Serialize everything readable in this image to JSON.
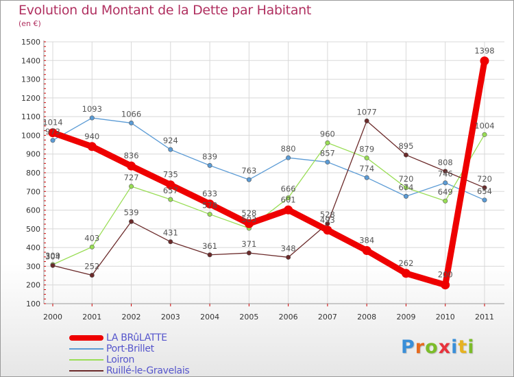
{
  "title": "Evolution du Montant de la Dette par Habitant",
  "subtitle": "(en €)",
  "brand": {
    "text": "Proxiti",
    "letter_colors": [
      "#3a8fd8",
      "#e66a1e",
      "#7cbc2a",
      "#e8323c",
      "#3a8fd8",
      "#e6b222",
      "#7cbc2a"
    ]
  },
  "colors": {
    "axis_text": "#333333",
    "grid": "#d8d8d8",
    "tick_red": "#cc0000"
  },
  "chart_data": {
    "type": "line",
    "title": "Evolution du Montant de la Dette par Habitant",
    "ylabel": "(en €)",
    "xlabel": "",
    "ylim": [
      100,
      1500
    ],
    "ytick_step": 100,
    "y_ticks": [
      "100",
      "200",
      "300",
      "400",
      "500",
      "600",
      "700",
      "800",
      "900",
      "1000",
      "1100",
      "1200",
      "1300",
      "1400",
      "1500"
    ],
    "grid": true,
    "legend_position": "bottom-left",
    "x": [
      "2000",
      "2001",
      "2002",
      "2003",
      "2004",
      "2005",
      "2006",
      "2007",
      "2008",
      "2009",
      "2010",
      "2011"
    ],
    "series": [
      {
        "name": "LA BRûLATTE",
        "color": "#ee0000",
        "emphasis": true,
        "values": [
          1014,
          940,
          836,
          735,
          633,
          528,
          601,
          493,
          384,
          262,
          200,
          1398
        ],
        "labels": [
          "1014",
          "940",
          "836",
          "735",
          "633",
          "528",
          "601",
          "493",
          "384",
          "262",
          "200",
          "1398"
        ]
      },
      {
        "name": "Port-Brillet",
        "color": "#5b9bd5",
        "emphasis": false,
        "values": [
          973,
          1093,
          1066,
          924,
          839,
          763,
          880,
          857,
          774,
          674,
          746,
          654
        ],
        "labels": [
          "973",
          "1093",
          "1066",
          "924",
          "839",
          "763",
          "880",
          "857",
          "774",
          "674",
          "746",
          "654"
        ]
      },
      {
        "name": "Loiron",
        "color": "#99dd55",
        "emphasis": false,
        "values": [
          309,
          403,
          727,
          657,
          578,
          503,
          666,
          960,
          879,
          720,
          649,
          1004
        ],
        "labels": [
          "309",
          "403",
          "727",
          "657",
          "578",
          "503",
          "666",
          "960",
          "879",
          "720",
          "649",
          "1004"
        ]
      },
      {
        "name": "Ruillé-le-Gravelais",
        "color": "#6b2a2a",
        "emphasis": false,
        "values": [
          304,
          252,
          539,
          431,
          361,
          371,
          348,
          528,
          1077,
          895,
          808,
          720
        ],
        "labels": [
          "304",
          "252",
          "539",
          "431",
          "361",
          "371",
          "348",
          "528",
          "1077",
          "895",
          "808",
          "720"
        ]
      }
    ]
  }
}
